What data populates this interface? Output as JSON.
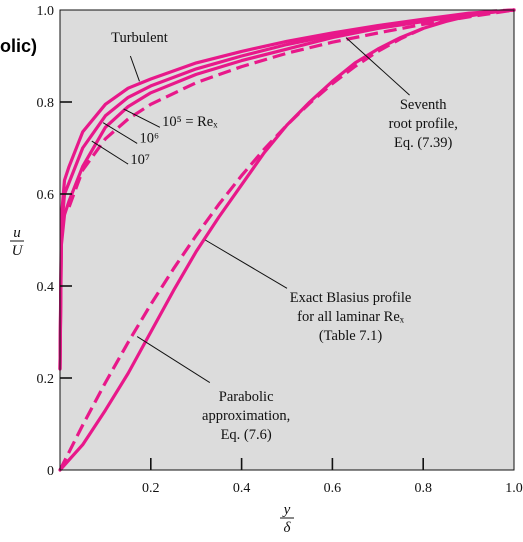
{
  "header_fragment": "olic)",
  "colors": {
    "curve": "#e8188a",
    "plot_background": "#dcdcdc",
    "frame": "#111111"
  },
  "chart_data": {
    "type": "line",
    "xlabel": {
      "num": "y",
      "den": "δ"
    },
    "ylabel": {
      "num": "u",
      "den": "U"
    },
    "xlim": [
      0,
      1.0
    ],
    "ylim": [
      0,
      1.0
    ],
    "grid": false,
    "x_ticks": [
      "0.2",
      "0.4",
      "0.6",
      "0.8",
      "1.0"
    ],
    "y_ticks": [
      "0",
      "0.2",
      "0.4",
      "0.6",
      "0.8",
      "1.0"
    ],
    "series": [
      {
        "style": "solid",
        "kind": "turbulent",
        "values": [
          [
            0.0,
            0.22
          ],
          [
            0.003,
            0.49
          ],
          [
            0.01,
            0.555
          ],
          [
            0.02,
            0.585
          ],
          [
            0.05,
            0.66
          ],
          [
            0.1,
            0.745
          ],
          [
            0.15,
            0.79
          ],
          [
            0.2,
            0.82
          ],
          [
            0.3,
            0.86
          ],
          [
            0.4,
            0.89
          ],
          [
            0.5,
            0.915
          ],
          [
            0.6,
            0.94
          ],
          [
            0.7,
            0.96
          ],
          [
            0.8,
            0.975
          ],
          [
            0.9,
            0.99
          ],
          [
            1.0,
            1.0
          ]
        ]
      },
      {
        "style": "solid",
        "kind": "turbulent",
        "values": [
          [
            0.0,
            0.22
          ],
          [
            0.003,
            0.52
          ],
          [
            0.01,
            0.6
          ],
          [
            0.02,
            0.625
          ],
          [
            0.05,
            0.7
          ],
          [
            0.1,
            0.77
          ],
          [
            0.15,
            0.81
          ],
          [
            0.2,
            0.835
          ],
          [
            0.3,
            0.872
          ],
          [
            0.4,
            0.9
          ],
          [
            0.5,
            0.925
          ],
          [
            0.6,
            0.945
          ],
          [
            0.7,
            0.963
          ],
          [
            0.8,
            0.978
          ],
          [
            0.9,
            0.992
          ],
          [
            1.0,
            1.0
          ]
        ]
      },
      {
        "style": "solid",
        "kind": "turbulent",
        "values": [
          [
            0.0,
            0.22
          ],
          [
            0.003,
            0.55
          ],
          [
            0.01,
            0.63
          ],
          [
            0.02,
            0.66
          ],
          [
            0.05,
            0.735
          ],
          [
            0.1,
            0.795
          ],
          [
            0.15,
            0.83
          ],
          [
            0.2,
            0.85
          ],
          [
            0.3,
            0.885
          ],
          [
            0.4,
            0.91
          ],
          [
            0.5,
            0.932
          ],
          [
            0.6,
            0.95
          ],
          [
            0.7,
            0.966
          ],
          [
            0.8,
            0.98
          ],
          [
            0.9,
            0.993
          ],
          [
            1.0,
            1.0
          ]
        ]
      },
      {
        "style": "dashed",
        "kind": "seventh-root",
        "values": [
          [
            0.02,
            0.572
          ],
          [
            0.05,
            0.652
          ],
          [
            0.1,
            0.72
          ],
          [
            0.15,
            0.763
          ],
          [
            0.2,
            0.795
          ],
          [
            0.3,
            0.842
          ],
          [
            0.4,
            0.877
          ],
          [
            0.5,
            0.906
          ],
          [
            0.6,
            0.93
          ],
          [
            0.7,
            0.95
          ],
          [
            0.8,
            0.969
          ],
          [
            0.9,
            0.985
          ],
          [
            1.0,
            1.0
          ]
        ]
      },
      {
        "style": "solid",
        "kind": "blasius",
        "values": [
          [
            0.0,
            0.0
          ],
          [
            0.05,
            0.055
          ],
          [
            0.1,
            0.13
          ],
          [
            0.15,
            0.21
          ],
          [
            0.2,
            0.3
          ],
          [
            0.25,
            0.39
          ],
          [
            0.3,
            0.475
          ],
          [
            0.35,
            0.55
          ],
          [
            0.4,
            0.62
          ],
          [
            0.45,
            0.69
          ],
          [
            0.5,
            0.75
          ],
          [
            0.55,
            0.8
          ],
          [
            0.6,
            0.845
          ],
          [
            0.65,
            0.885
          ],
          [
            0.7,
            0.915
          ],
          [
            0.75,
            0.94
          ],
          [
            0.8,
            0.96
          ],
          [
            0.85,
            0.975
          ],
          [
            0.9,
            0.987
          ],
          [
            0.95,
            0.995
          ],
          [
            1.0,
            1.0
          ]
        ]
      },
      {
        "style": "dashed",
        "kind": "parabolic",
        "values": [
          [
            0.0,
            0.0
          ],
          [
            0.05,
            0.0975
          ],
          [
            0.1,
            0.19
          ],
          [
            0.15,
            0.2775
          ],
          [
            0.2,
            0.36
          ],
          [
            0.25,
            0.4375
          ],
          [
            0.3,
            0.51
          ],
          [
            0.35,
            0.5775
          ],
          [
            0.4,
            0.64
          ],
          [
            0.45,
            0.6975
          ],
          [
            0.5,
            0.75
          ],
          [
            0.55,
            0.7975
          ],
          [
            0.6,
            0.84
          ],
          [
            0.65,
            0.8775
          ],
          [
            0.7,
            0.91
          ],
          [
            0.75,
            0.9375
          ],
          [
            0.8,
            0.96
          ],
          [
            0.85,
            0.9775
          ],
          [
            0.9,
            0.99
          ],
          [
            0.95,
            0.9975
          ],
          [
            1.0,
            1.0
          ]
        ]
      }
    ],
    "annotations": [
      {
        "id": "turbulent",
        "lines": [
          "Turbulent"
        ],
        "anchor": "middle",
        "text_at": [
          0.175,
          0.93
        ],
        "leader": [
          [
            0.155,
            0.9
          ],
          [
            0.175,
            0.845
          ]
        ]
      },
      {
        "id": "re5",
        "lines": [
          "10⁵ = Reₓ"
        ],
        "anchor": "start",
        "text_at": [
          0.225,
          0.748
        ],
        "leader": [
          [
            0.22,
            0.745
          ],
          [
            0.14,
            0.785
          ]
        ]
      },
      {
        "id": "re6",
        "lines": [
          "10⁶"
        ],
        "anchor": "start",
        "text_at": [
          0.175,
          0.712
        ],
        "leader": [
          [
            0.17,
            0.71
          ],
          [
            0.095,
            0.755
          ]
        ]
      },
      {
        "id": "re7",
        "lines": [
          "10⁷"
        ],
        "anchor": "start",
        "text_at": [
          0.155,
          0.665
        ],
        "leader": [
          [
            0.15,
            0.665
          ],
          [
            0.07,
            0.715
          ]
        ]
      },
      {
        "id": "seventh",
        "lines": [
          "Seventh",
          "root profile,",
          "Eq. (7.39)"
        ],
        "anchor": "middle",
        "text_at": [
          0.8,
          0.785
        ],
        "leader": [
          [
            0.77,
            0.815
          ],
          [
            0.63,
            0.94
          ]
        ]
      },
      {
        "id": "blasius",
        "lines": [
          "Exact Blasius profile",
          "for all laminar Reₓ",
          "(Table 7.1)"
        ],
        "anchor": "middle",
        "text_at": [
          0.64,
          0.365
        ],
        "leader": [
          [
            0.5,
            0.395
          ],
          [
            0.32,
            0.5
          ]
        ]
      },
      {
        "id": "parabolic",
        "lines": [
          "Parabolic",
          "approximation,",
          "Eq. (7.6)"
        ],
        "anchor": "middle",
        "text_at": [
          0.41,
          0.15
        ],
        "leader": [
          [
            0.33,
            0.19
          ],
          [
            0.17,
            0.29
          ]
        ]
      }
    ]
  }
}
